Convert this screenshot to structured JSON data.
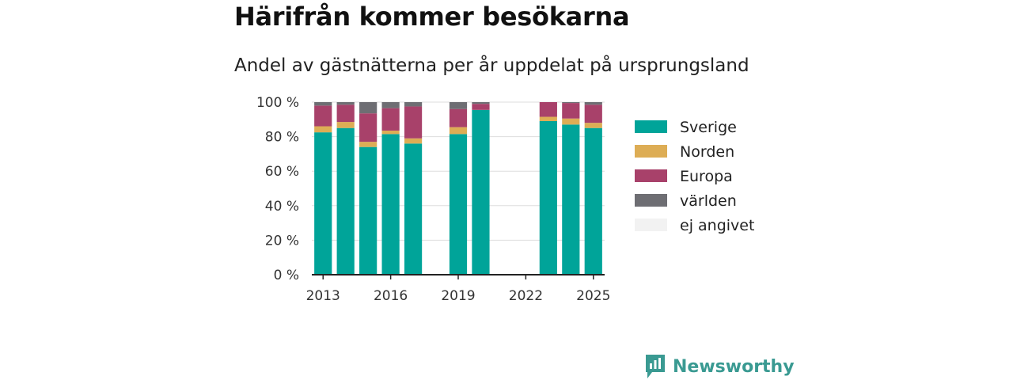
{
  "title": "Härifrån kommer besökarna",
  "subtitle": "Andel av gästnätterna per år uppdelat på ursprungsland",
  "brand": {
    "name": "Newsworthy",
    "icon": "newsworthy-logo-icon"
  },
  "colors": {
    "Sverige": "#00a499",
    "Norden": "#ddad55",
    "Europa": "#a8416a",
    "världen": "#6e6e73",
    "ej angivet": "#f2f2f2"
  },
  "chart_data": {
    "type": "bar",
    "stacked": true,
    "x": [
      2013,
      2014,
      2015,
      2016,
      2017,
      2018,
      2019,
      2020,
      2021,
      2022,
      2023,
      2024,
      2025
    ],
    "x_ticks": [
      "2013",
      "2016",
      "2019",
      "2022",
      "2025"
    ],
    "y_ticks": [
      "0 %",
      "20 %",
      "40 %",
      "60 %",
      "80 %",
      "100 %"
    ],
    "ylim": [
      0,
      100
    ],
    "grid": true,
    "legend_position": "right",
    "series": [
      {
        "name": "Sverige",
        "values": [
          82.5,
          85,
          74,
          81.5,
          76,
          null,
          81.5,
          95.5,
          null,
          null,
          89,
          87,
          85
        ]
      },
      {
        "name": "Norden",
        "values": [
          3.5,
          3.5,
          3,
          2,
          3,
          null,
          4,
          0,
          null,
          null,
          2.5,
          3.5,
          3
        ]
      },
      {
        "name": "Europa",
        "values": [
          12,
          10,
          16.5,
          13,
          18.5,
          null,
          10.5,
          3.5,
          null,
          null,
          8.5,
          9,
          10.5
        ]
      },
      {
        "name": "världen",
        "values": [
          2,
          1.5,
          6.5,
          3.5,
          2.5,
          null,
          4,
          1,
          null,
          null,
          0,
          0.5,
          1.5
        ]
      },
      {
        "name": "ej angivet",
        "values": [
          0,
          0,
          0,
          0,
          0,
          null,
          0,
          0,
          null,
          null,
          0,
          0,
          0
        ]
      }
    ]
  }
}
